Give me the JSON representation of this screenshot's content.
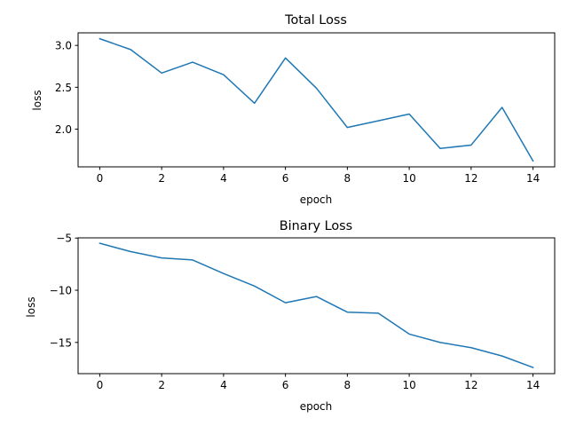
{
  "chart_data": [
    {
      "type": "line",
      "title": "Total Loss",
      "xlabel": "epoch",
      "ylabel": "loss",
      "x": [
        0,
        1,
        2,
        3,
        4,
        5,
        6,
        7,
        8,
        9,
        10,
        11,
        12,
        13,
        14
      ],
      "series": [
        {
          "values": [
            3.08,
            2.95,
            2.67,
            2.8,
            2.65,
            2.31,
            2.85,
            2.49,
            2.02,
            2.1,
            2.18,
            1.77,
            1.81,
            2.26,
            1.62
          ],
          "color": "#1f77b4"
        }
      ],
      "xlim": [
        -0.7,
        14.7
      ],
      "ylim": [
        1.55,
        3.15
      ],
      "xticks": [
        0,
        2,
        4,
        6,
        8,
        10,
        12,
        14
      ],
      "xtick_labels": [
        "0",
        "2",
        "4",
        "6",
        "8",
        "10",
        "12",
        "14"
      ],
      "yticks": [
        2.0,
        2.5,
        3.0
      ],
      "ytick_labels": [
        "2.0",
        "2.5",
        "3.0"
      ],
      "grid": false
    },
    {
      "type": "line",
      "title": "Binary Loss",
      "xlabel": "epoch",
      "ylabel": "loss",
      "x": [
        0,
        1,
        2,
        3,
        4,
        5,
        6,
        7,
        8,
        9,
        10,
        11,
        12,
        13,
        14
      ],
      "series": [
        {
          "values": [
            -5.5,
            -6.3,
            -6.9,
            -7.1,
            -8.4,
            -9.6,
            -11.2,
            -10.6,
            -12.1,
            -12.2,
            -14.2,
            -15.0,
            -15.5,
            -16.3,
            -17.4
          ],
          "color": "#1f77b4"
        }
      ],
      "xlim": [
        -0.7,
        14.7
      ],
      "ylim": [
        -17.99,
        -4.98
      ],
      "xticks": [
        0,
        2,
        4,
        6,
        8,
        10,
        12,
        14
      ],
      "xtick_labels": [
        "0",
        "2",
        "4",
        "6",
        "8",
        "10",
        "12",
        "14"
      ],
      "yticks": [
        -15,
        -10,
        -5
      ],
      "ytick_labels": [
        "−15",
        "−10",
        "−5"
      ],
      "grid": false
    }
  ]
}
